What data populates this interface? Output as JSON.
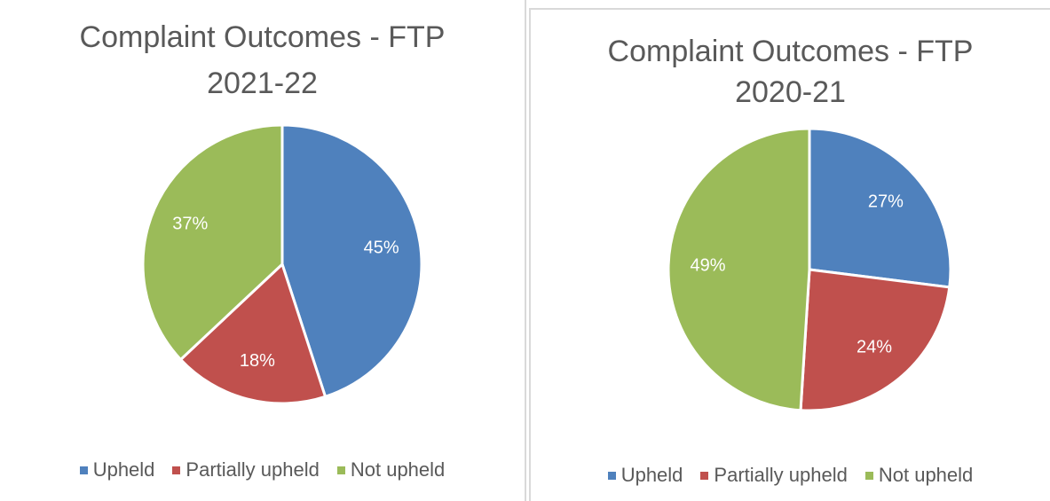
{
  "chart_data": [
    {
      "type": "pie",
      "title": "Complaint Outcomes - FTP 2021-22",
      "categories": [
        "Upheld",
        "Partially upheld",
        "Not upheld"
      ],
      "values": [
        45,
        18,
        37
      ],
      "value_labels": [
        "45%",
        "18%",
        "37%"
      ],
      "colors": [
        "#4f81bd",
        "#c0504d",
        "#9bbb59"
      ],
      "legend": "bottom"
    },
    {
      "type": "pie",
      "title": "Complaint Outcomes - FTP 2020-21",
      "categories": [
        "Upheld",
        "Partially upheld",
        "Not upheld"
      ],
      "values": [
        27,
        24,
        49
      ],
      "value_labels": [
        "27%",
        "24%",
        "49%"
      ],
      "colors": [
        "#4f81bd",
        "#c0504d",
        "#9bbb59"
      ],
      "legend": "bottom"
    }
  ]
}
